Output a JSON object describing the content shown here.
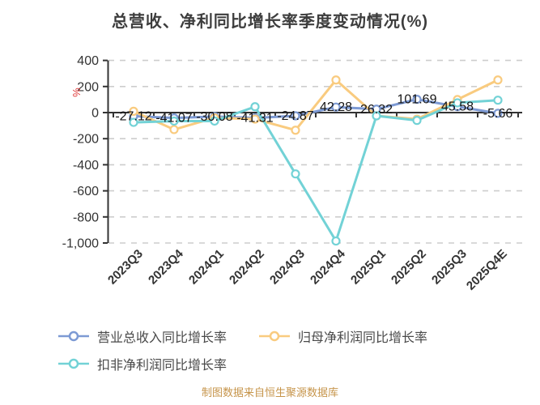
{
  "title": "总营收、净利同比增长率季度变动情况(%)",
  "footer_note": "制图数据来自恒生聚源数据库",
  "chart_data": {
    "type": "line",
    "title": "总营收、净利同比增长率季度变动情况(%)",
    "y_unit": "%",
    "y_unit_color": "#e03b3b",
    "categories": [
      "2023Q3",
      "2023Q4",
      "2024Q1",
      "2024Q2",
      "2024Q3",
      "2024Q4",
      "2025Q1",
      "2025Q2",
      "2025Q3",
      "2025Q4E"
    ],
    "series": [
      {
        "name": "营业总收入同比增长率",
        "color": "#7d9ad4",
        "values": [
          -27.12,
          -41.07,
          -30.08,
          -41.31,
          -24.87,
          42.28,
          26.32,
          101.69,
          45.58,
          -5.66
        ],
        "labels": [
          "-27.12",
          "-41.07",
          "-30.08",
          "-41.31",
          "-24.87",
          "42.28",
          "26.32",
          "101.69",
          "45.58",
          "-5.66"
        ]
      },
      {
        "name": "归母净利润同比增长率",
        "color": "#f9cb7f",
        "values": [
          10,
          -130,
          -40,
          -50,
          -135,
          250,
          -25,
          -50,
          100,
          250
        ],
        "labels": null
      },
      {
        "name": "扣非净利润同比增长率",
        "color": "#72d2d6",
        "values": [
          -75,
          -65,
          -65,
          45,
          -470,
          -985,
          -25,
          -60,
          75,
          95
        ],
        "labels": null
      }
    ],
    "ylim": [
      -1000,
      400
    ],
    "y_ticks": [
      {
        "value": 400,
        "label": "400"
      },
      {
        "value": 200,
        "label": "200"
      },
      {
        "value": 0,
        "label": "0"
      },
      {
        "value": -200,
        "label": "-200"
      },
      {
        "value": -400,
        "label": "-400"
      },
      {
        "value": -600,
        "label": "-600"
      },
      {
        "value": -800,
        "label": "-800"
      },
      {
        "value": -1000,
        "label": "-1,000"
      }
    ],
    "grid": "horizontal-dashed",
    "legend_position": "bottom-left",
    "colors": {
      "axis": "#333333",
      "gridline": "#cdcdcd",
      "data_label": "#161616",
      "title": "#3d3d3d",
      "footer": "#c6944a"
    }
  }
}
